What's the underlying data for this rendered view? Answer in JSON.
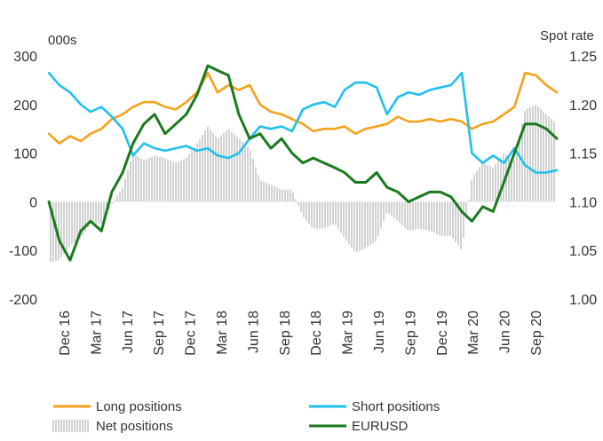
{
  "chart_data": {
    "type": "line",
    "left_axis": {
      "unit": "000s",
      "range": [
        -200,
        300
      ],
      "ticks": [
        "300",
        "200",
        "100",
        "0",
        "-100",
        "-200"
      ]
    },
    "right_axis": {
      "unit": "Spot rate",
      "range": [
        1.0,
        1.25
      ],
      "ticks": [
        "1.25",
        "1.20",
        "1.15",
        "1.10",
        "1.05",
        "1.00"
      ]
    },
    "x_ticks": [
      "Dec 16",
      "Mar 17",
      "Jun 17",
      "Sep 17",
      "Dec 17",
      "Mar 18",
      "Jun 18",
      "Sep 18",
      "Dec 18",
      "Mar 19",
      "Jun 19",
      "Sep 19",
      "Dec 19",
      "Mar 20",
      "Jun 20",
      "Sep 20"
    ],
    "x_range": [
      "2016-11-01",
      "2020-10-31"
    ],
    "grid": false,
    "legend_position": "bottom",
    "legend": [
      "Long positions",
      "Short positions",
      "Net positions",
      "EURUSD"
    ],
    "series": [
      {
        "name": "Long positions",
        "axis": "left",
        "color": "#f5a21b",
        "style": "line",
        "x": [
          "2016-11-01",
          "2016-12-01",
          "2017-01-01",
          "2017-02-01",
          "2017-03-01",
          "2017-04-01",
          "2017-05-01",
          "2017-06-01",
          "2017-07-01",
          "2017-08-01",
          "2017-09-01",
          "2017-10-01",
          "2017-11-01",
          "2017-12-01",
          "2018-01-01",
          "2018-02-01",
          "2018-03-01",
          "2018-04-01",
          "2018-05-01",
          "2018-06-01",
          "2018-07-01",
          "2018-08-01",
          "2018-09-01",
          "2018-10-01",
          "2018-11-01",
          "2018-12-01",
          "2019-01-01",
          "2019-02-01",
          "2019-03-01",
          "2019-04-01",
          "2019-05-01",
          "2019-06-01",
          "2019-07-01",
          "2019-08-01",
          "2019-09-01",
          "2019-10-01",
          "2019-11-01",
          "2019-12-01",
          "2020-01-01",
          "2020-02-01",
          "2020-03-01",
          "2020-04-01",
          "2020-05-01",
          "2020-06-01",
          "2020-07-01",
          "2020-08-01",
          "2020-09-01",
          "2020-10-01",
          "2020-10-31"
        ],
        "values": [
          140,
          120,
          135,
          125,
          140,
          150,
          170,
          180,
          195,
          205,
          205,
          195,
          190,
          205,
          225,
          265,
          225,
          240,
          230,
          240,
          200,
          185,
          180,
          170,
          160,
          145,
          150,
          150,
          155,
          140,
          150,
          155,
          160,
          175,
          165,
          165,
          170,
          165,
          170,
          165,
          150,
          160,
          165,
          180,
          195,
          265,
          260,
          240,
          225
        ]
      },
      {
        "name": "Short positions",
        "axis": "left",
        "color": "#1fc0ee",
        "style": "line",
        "x": [
          "2016-11-01",
          "2016-12-01",
          "2017-01-01",
          "2017-02-01",
          "2017-03-01",
          "2017-04-01",
          "2017-05-01",
          "2017-06-01",
          "2017-07-01",
          "2017-08-01",
          "2017-09-01",
          "2017-10-01",
          "2017-11-01",
          "2017-12-01",
          "2018-01-01",
          "2018-02-01",
          "2018-03-01",
          "2018-04-01",
          "2018-05-01",
          "2018-06-01",
          "2018-07-01",
          "2018-08-01",
          "2018-09-01",
          "2018-10-01",
          "2018-11-01",
          "2018-12-01",
          "2019-01-01",
          "2019-02-01",
          "2019-03-01",
          "2019-04-01",
          "2019-05-01",
          "2019-06-01",
          "2019-07-01",
          "2019-08-01",
          "2019-09-01",
          "2019-10-01",
          "2019-11-01",
          "2019-12-01",
          "2020-01-01",
          "2020-02-01",
          "2020-03-01",
          "2020-04-01",
          "2020-05-01",
          "2020-06-01",
          "2020-07-01",
          "2020-08-01",
          "2020-09-01",
          "2020-10-01",
          "2020-10-31"
        ],
        "values": [
          265,
          240,
          225,
          200,
          185,
          195,
          175,
          150,
          95,
          120,
          110,
          105,
          110,
          115,
          105,
          110,
          95,
          90,
          100,
          130,
          155,
          150,
          155,
          145,
          190,
          200,
          205,
          195,
          230,
          245,
          245,
          235,
          180,
          215,
          225,
          220,
          230,
          235,
          240,
          265,
          100,
          80,
          95,
          80,
          110,
          75,
          60,
          60,
          65
        ]
      },
      {
        "name": "EURUSD",
        "axis": "right",
        "color": "#1b7a1e",
        "style": "line",
        "x": [
          "2016-11-01",
          "2016-12-01",
          "2017-01-01",
          "2017-02-01",
          "2017-03-01",
          "2017-04-01",
          "2017-05-01",
          "2017-06-01",
          "2017-07-01",
          "2017-08-01",
          "2017-09-01",
          "2017-10-01",
          "2017-11-01",
          "2017-12-01",
          "2018-01-01",
          "2018-02-01",
          "2018-03-01",
          "2018-04-01",
          "2018-05-01",
          "2018-06-01",
          "2018-07-01",
          "2018-08-01",
          "2018-09-01",
          "2018-10-01",
          "2018-11-01",
          "2018-12-01",
          "2019-01-01",
          "2019-02-01",
          "2019-03-01",
          "2019-04-01",
          "2019-05-01",
          "2019-06-01",
          "2019-07-01",
          "2019-08-01",
          "2019-09-01",
          "2019-10-01",
          "2019-11-01",
          "2019-12-01",
          "2020-01-01",
          "2020-02-01",
          "2020-03-01",
          "2020-04-01",
          "2020-05-01",
          "2020-06-01",
          "2020-07-01",
          "2020-08-01",
          "2020-09-01",
          "2020-10-01",
          "2020-10-31"
        ],
        "values": [
          1.1,
          1.06,
          1.04,
          1.07,
          1.08,
          1.07,
          1.11,
          1.13,
          1.16,
          1.18,
          1.19,
          1.17,
          1.18,
          1.19,
          1.21,
          1.24,
          1.235,
          1.23,
          1.19,
          1.165,
          1.17,
          1.155,
          1.165,
          1.15,
          1.14,
          1.145,
          1.14,
          1.135,
          1.13,
          1.12,
          1.12,
          1.13,
          1.115,
          1.11,
          1.1,
          1.105,
          1.11,
          1.11,
          1.105,
          1.09,
          1.08,
          1.095,
          1.09,
          1.12,
          1.15,
          1.18,
          1.18,
          1.175,
          1.165
        ]
      },
      {
        "name": "Net positions",
        "axis": "left",
        "color": "#bdbdbd",
        "style": "bars",
        "x": [
          "2016-11-01",
          "2016-12-01",
          "2017-01-01",
          "2017-02-01",
          "2017-03-01",
          "2017-04-01",
          "2017-05-01",
          "2017-06-01",
          "2017-07-01",
          "2017-08-01",
          "2017-09-01",
          "2017-10-01",
          "2017-11-01",
          "2017-12-01",
          "2018-01-01",
          "2018-02-01",
          "2018-03-01",
          "2018-04-01",
          "2018-05-01",
          "2018-06-01",
          "2018-07-01",
          "2018-08-01",
          "2018-09-01",
          "2018-10-01",
          "2018-11-01",
          "2018-12-01",
          "2019-01-01",
          "2019-02-01",
          "2019-03-01",
          "2019-04-01",
          "2019-05-01",
          "2019-06-01",
          "2019-07-01",
          "2019-08-01",
          "2019-09-01",
          "2019-10-01",
          "2019-11-01",
          "2019-12-01",
          "2020-01-01",
          "2020-02-01",
          "2020-03-01",
          "2020-04-01",
          "2020-05-01",
          "2020-06-01",
          "2020-07-01",
          "2020-08-01",
          "2020-09-01",
          "2020-10-01",
          "2020-10-31"
        ],
        "values": [
          -125,
          -120,
          -90,
          -75,
          -45,
          -45,
          -5,
          30,
          100,
          85,
          95,
          90,
          80,
          90,
          120,
          155,
          130,
          150,
          130,
          110,
          45,
          35,
          25,
          25,
          -30,
          -55,
          -55,
          -45,
          -75,
          -105,
          -95,
          -80,
          -20,
          -40,
          -60,
          -55,
          -60,
          -70,
          -70,
          -100,
          50,
          80,
          70,
          100,
          85,
          190,
          200,
          180,
          160
        ]
      }
    ]
  }
}
